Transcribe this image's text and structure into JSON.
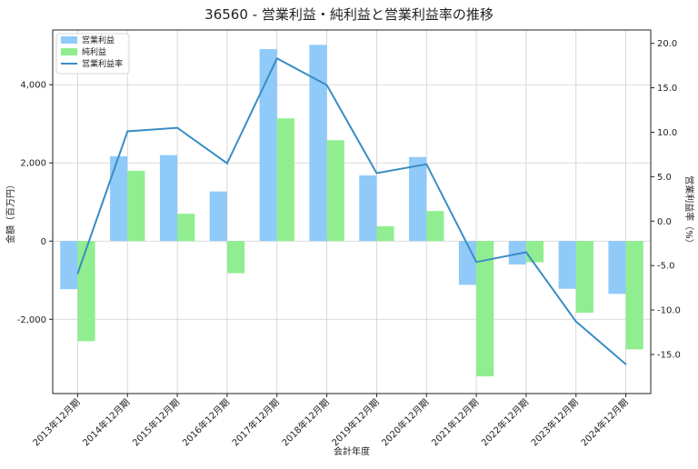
{
  "chart_data": {
    "type": "bar+line",
    "title": "36560 - 営業利益・純利益と営業利益率の推移",
    "xlabel": "会計年度",
    "ylabel_left": "金額（百万円）",
    "ylabel_right": "営業利益率（%）",
    "categories": [
      "2013年12月期",
      "2014年12月期",
      "2015年12月期",
      "2016年12月期",
      "2017年12月期",
      "2018年12月期",
      "2019年12月期",
      "2020年12月期",
      "2021年12月期",
      "2022年12月期",
      "2023年12月期",
      "2024年12月期"
    ],
    "series": [
      {
        "name": "営業利益",
        "kind": "bar",
        "axis": "left",
        "color": "#90CAF9",
        "values": [
          -1230,
          2170,
          2200,
          1270,
          4910,
          5020,
          1680,
          2150,
          -1120,
          -600,
          -1220,
          -1350
        ]
      },
      {
        "name": "純利益",
        "kind": "bar",
        "axis": "left",
        "color": "#90EE90",
        "values": [
          -2560,
          1800,
          700,
          -820,
          3140,
          2580,
          380,
          770,
          -3460,
          -540,
          -1830,
          -2770
        ]
      },
      {
        "name": "営業利益率",
        "kind": "line",
        "axis": "right",
        "color": "#3A8DC4",
        "values": [
          -5.9,
          10.1,
          10.5,
          6.5,
          18.3,
          15.3,
          5.4,
          6.4,
          -4.6,
          -3.5,
          -11.3,
          -16.1
        ]
      }
    ],
    "left_ticks": [
      "-2,000",
      "0",
      "2,000",
      "4,000"
    ],
    "left_tick_values": [
      -2000,
      0,
      2000,
      4000
    ],
    "right_ticks": [
      "-15.0",
      "-10.0",
      "-5.0",
      "0.0",
      "5.0",
      "10.0",
      "15.0",
      "20.0"
    ],
    "right_tick_values": [
      -15,
      -10,
      -5,
      0,
      5,
      10,
      15,
      20
    ],
    "ylim_left": [
      -3900,
      5400
    ],
    "ylim_right": [
      -19.4,
      21.5
    ],
    "grid": true,
    "legend_position": "top-left"
  }
}
